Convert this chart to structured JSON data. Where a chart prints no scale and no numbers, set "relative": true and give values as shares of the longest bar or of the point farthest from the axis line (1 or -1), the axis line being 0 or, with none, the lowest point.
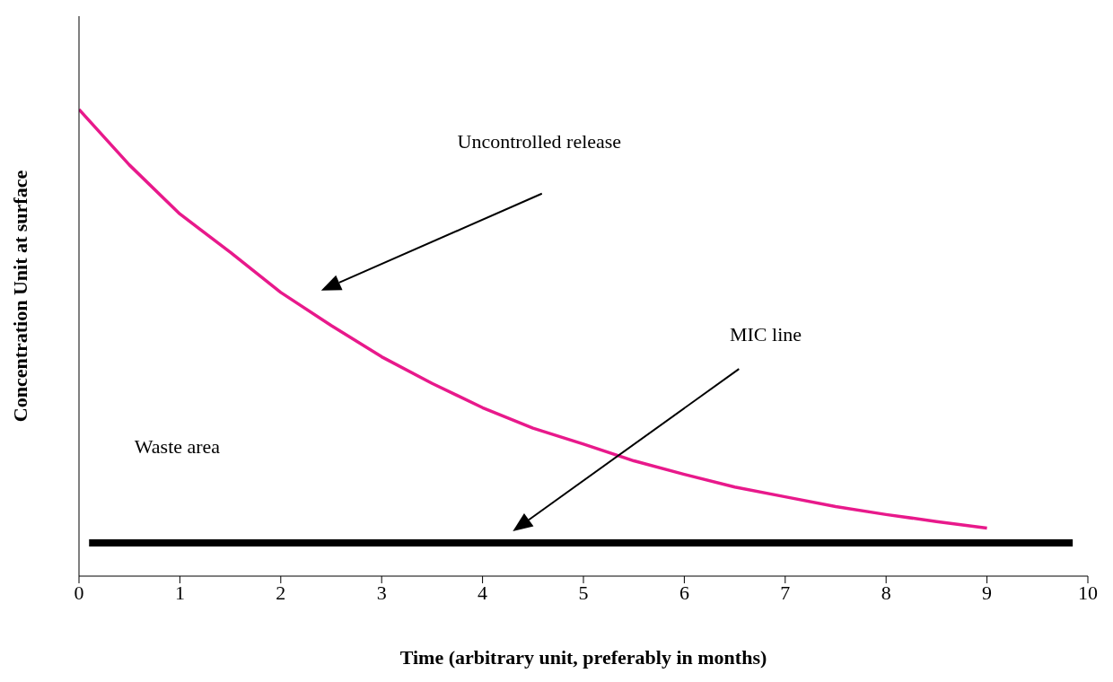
{
  "chart_data": {
    "type": "line",
    "relative": true,
    "xlabel": "Time (arbitrary unit, preferably in months)",
    "ylabel": "Concentration Unit at surface",
    "xlim": [
      0,
      10
    ],
    "xticks": [
      0,
      1,
      2,
      3,
      4,
      5,
      6,
      7,
      8,
      9,
      10
    ],
    "marker": "none",
    "line_style": "solid",
    "series": [
      {
        "color": "#e8198b",
        "x": [
          0,
          0.5,
          1,
          1.5,
          2,
          2.5,
          3,
          3.5,
          4,
          4.5,
          5,
          5.5,
          6,
          6.5,
          7,
          7.5,
          8,
          8.5,
          9
        ],
        "values": [
          1,
          0.881,
          0.776,
          0.694,
          0.608,
          0.537,
          0.47,
          0.413,
          0.361,
          0.317,
          0.283,
          0.247,
          0.218,
          0.191,
          0.17,
          0.149,
          0.132,
          0.117,
          0.103
        ]
      },
      {
        "color": "#000000",
        "x": [
          0.1,
          9.85
        ],
        "values": [
          0.071,
          0.071
        ]
      }
    ],
    "annotations": [
      "Uncontrolled release",
      "MIC line",
      "Waste area"
    ]
  }
}
